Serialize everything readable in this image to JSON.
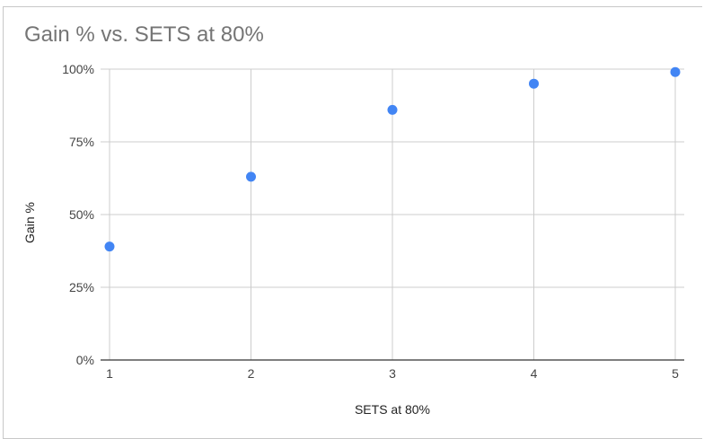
{
  "chart_data": {
    "type": "scatter",
    "title": "Gain % vs. SETS at 80%",
    "xlabel": "SETS at 80%",
    "ylabel": "Gain %",
    "x": [
      1,
      2,
      3,
      4,
      5
    ],
    "y": [
      39,
      63,
      86,
      95,
      99
    ],
    "xlim": [
      1,
      5
    ],
    "ylim": [
      0,
      100
    ],
    "x_ticks": [
      "1",
      "2",
      "3",
      "4",
      "5"
    ],
    "y_ticks": [
      "0%",
      "25%",
      "50%",
      "75%",
      "100%"
    ],
    "y_tick_values": [
      0,
      25,
      50,
      75,
      100
    ],
    "grid": true,
    "legend": "none",
    "colors": {
      "point": "#4285f4",
      "grid": "#cccccc",
      "axis": "#333333"
    }
  }
}
